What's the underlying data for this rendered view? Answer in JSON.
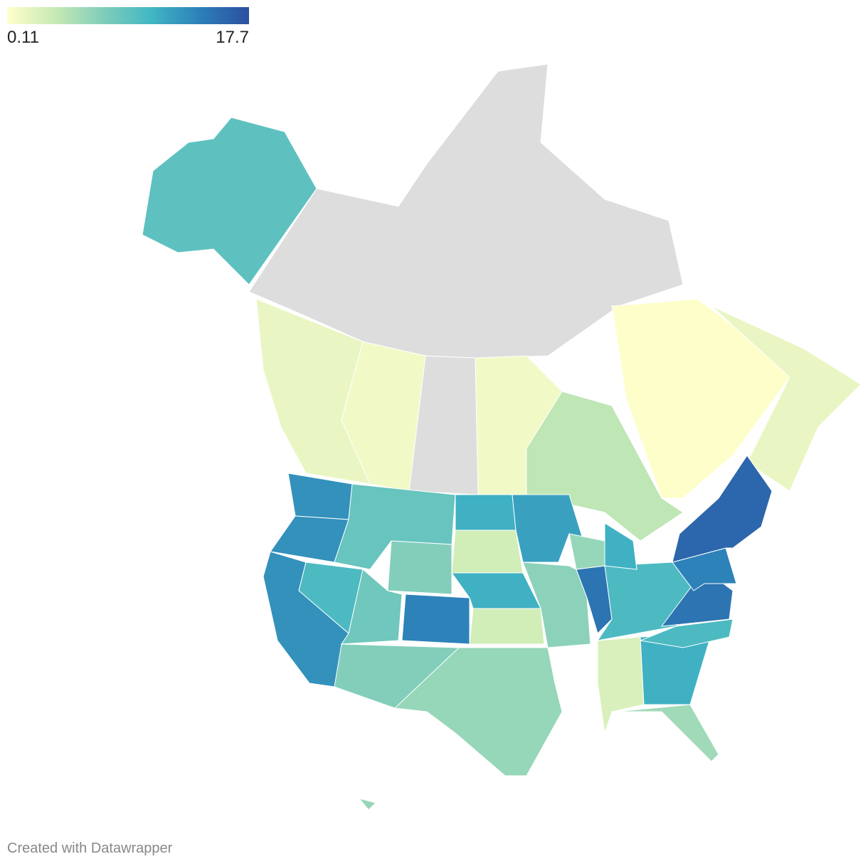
{
  "legend": {
    "min": 0.11,
    "max": 17.7,
    "colors": [
      "#ffffcc",
      "#c7e9b4",
      "#7fcdbb",
      "#41b6c4",
      "#2c7fb8",
      "#2c4fa0"
    ]
  },
  "no_data_color": "#dddddd",
  "regions": {
    "values": [
      9,
      1.5,
      1,
      1,
      4,
      0.2,
      1.5,
      13,
      13,
      13,
      10,
      8.5,
      7,
      8,
      7,
      14,
      11,
      3,
      11,
      3,
      6,
      12,
      6.5,
      15,
      10,
      11,
      6,
      2.5,
      11,
      5.5,
      10,
      15,
      14,
      16,
      6
    ]
  },
  "footer": {
    "credit": "Created with Datawrapper"
  }
}
